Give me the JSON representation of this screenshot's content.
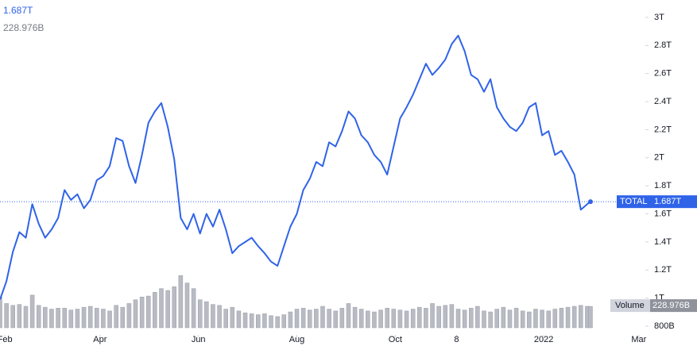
{
  "chart_data": {
    "type": "line",
    "price_label": "1.687T",
    "volume_label": "228.976B",
    "x": [
      0,
      4,
      8,
      12,
      16,
      20,
      24,
      28,
      32,
      36,
      40,
      44,
      48,
      52,
      56,
      60,
      64,
      68,
      72,
      76,
      80,
      84,
      88,
      92,
      96,
      100,
      104,
      108,
      112,
      116,
      120,
      124,
      128,
      132,
      136,
      140,
      144,
      148,
      152,
      156,
      160,
      164,
      168,
      172,
      176,
      180,
      184,
      188,
      192,
      196,
      200,
      204,
      208,
      212,
      216,
      220,
      224,
      228,
      232,
      236,
      240,
      244,
      248,
      252,
      256,
      260,
      264,
      268,
      272,
      276,
      280,
      284,
      288,
      292,
      296,
      300,
      304,
      308,
      312,
      316,
      320,
      324,
      328,
      332,
      336,
      340,
      344,
      348,
      352,
      356,
      360,
      364,
      366
    ],
    "series": [
      {
        "name": "TOTAL",
        "color": "#2f63e8",
        "values": [
          0.99,
          1.12,
          1.33,
          1.47,
          1.43,
          1.67,
          1.53,
          1.43,
          1.49,
          1.57,
          1.77,
          1.7,
          1.74,
          1.64,
          1.7,
          1.84,
          1.87,
          1.94,
          2.14,
          2.12,
          1.94,
          1.82,
          2.02,
          2.25,
          2.33,
          2.39,
          2.22,
          1.99,
          1.57,
          1.49,
          1.6,
          1.46,
          1.6,
          1.51,
          1.63,
          1.49,
          1.32,
          1.37,
          1.4,
          1.43,
          1.37,
          1.32,
          1.26,
          1.23,
          1.37,
          1.51,
          1.6,
          1.77,
          1.85,
          1.97,
          1.94,
          2.11,
          2.08,
          2.19,
          2.33,
          2.28,
          2.16,
          2.11,
          2.02,
          1.97,
          1.88,
          2.08,
          2.28,
          2.36,
          2.45,
          2.56,
          2.67,
          2.59,
          2.64,
          2.7,
          2.81,
          2.87,
          2.76,
          2.59,
          2.56,
          2.47,
          2.56,
          2.36,
          2.28,
          2.22,
          2.19,
          2.25,
          2.36,
          2.39,
          2.16,
          2.19,
          2.02,
          2.05,
          1.97,
          1.88,
          1.63,
          1.67,
          1.687
        ]
      },
      {
        "name": "Volume",
        "color": "#b8bbc4",
        "axis": "volume",
        "values": [
          330,
          260,
          240,
          250,
          230,
          350,
          240,
          220,
          200,
          210,
          210,
          190,
          200,
          220,
          230,
          210,
          200,
          180,
          240,
          220,
          260,
          300,
          330,
          340,
          380,
          420,
          400,
          440,
          560,
          480,
          420,
          300,
          280,
          250,
          240,
          200,
          220,
          180,
          160,
          150,
          140,
          150,
          130,
          120,
          140,
          170,
          200,
          210,
          190,
          200,
          230,
          200,
          180,
          210,
          260,
          220,
          200,
          180,
          170,
          190,
          210,
          200,
          190,
          180,
          200,
          220,
          210,
          260,
          230,
          240,
          250,
          200,
          190,
          210,
          230,
          180,
          170,
          200,
          220,
          190,
          210,
          180,
          170,
          200,
          190,
          180,
          200,
          210,
          220,
          230,
          240,
          230,
          228.976
        ]
      }
    ],
    "xlim": [
      0,
      400
    ],
    "xticks": [
      {
        "value": 3,
        "label": "Feb"
      },
      {
        "value": 62,
        "label": "Apr"
      },
      {
        "value": 123,
        "label": "Jun"
      },
      {
        "value": 184,
        "label": "Aug"
      },
      {
        "value": 245,
        "label": "Oct"
      },
      {
        "value": 283,
        "label": "8"
      },
      {
        "value": 337,
        "label": "2022"
      },
      {
        "value": 396,
        "label": "Mar"
      }
    ],
    "ylim": [
      0.738,
      3.124
    ],
    "yticks": [
      {
        "value": 0.8,
        "label": "800B"
      },
      {
        "value": 1,
        "label": "1T"
      },
      {
        "value": 1.2,
        "label": "1.2T"
      },
      {
        "value": 1.4,
        "label": "1.4T"
      },
      {
        "value": 1.6,
        "label": "1.6T"
      },
      {
        "value": 1.8,
        "label": "1.8T"
      },
      {
        "value": 2,
        "label": "2T"
      },
      {
        "value": 2.2,
        "label": "2.2T"
      },
      {
        "value": 2.4,
        "label": "2.4T"
      },
      {
        "value": 2.6,
        "label": "2.6T"
      },
      {
        "value": 2.8,
        "label": "2.8T"
      },
      {
        "value": 3,
        "label": "3T"
      }
    ],
    "volume_ylim": [
      0,
      800
    ]
  }
}
